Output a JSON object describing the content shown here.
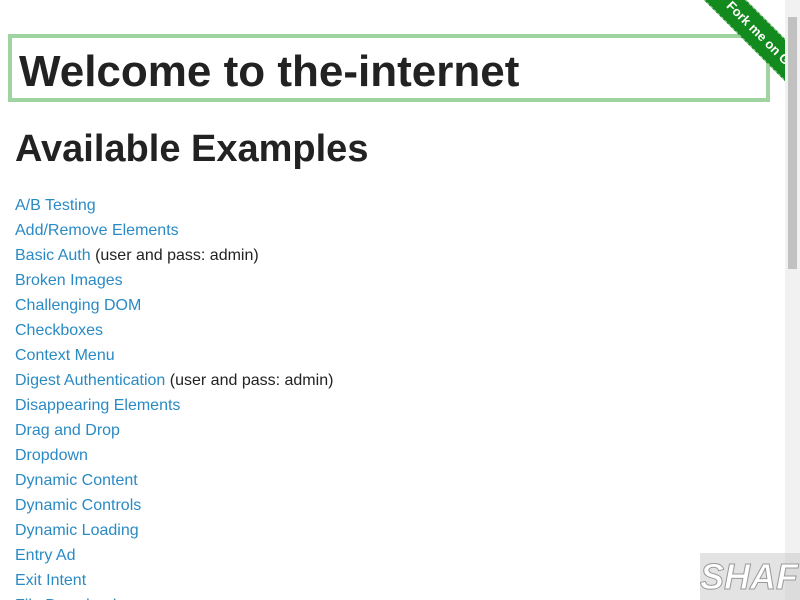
{
  "header": {
    "title": "Welcome to the-internet",
    "subtitle": "Available Examples"
  },
  "ribbon": "Fork me on GitHub",
  "links": [
    {
      "text": "A/B Testing"
    },
    {
      "text": "Add/Remove Elements"
    },
    {
      "text": "Basic Auth",
      "note": "(user and pass: admin)"
    },
    {
      "text": "Broken Images"
    },
    {
      "text": "Challenging DOM"
    },
    {
      "text": "Checkboxes"
    },
    {
      "text": "Context Menu"
    },
    {
      "text": "Digest Authentication",
      "note": "(user and pass: admin)"
    },
    {
      "text": "Disappearing Elements"
    },
    {
      "text": "Drag and Drop"
    },
    {
      "text": "Dropdown"
    },
    {
      "text": "Dynamic Content"
    },
    {
      "text": "Dynamic Controls"
    },
    {
      "text": "Dynamic Loading"
    },
    {
      "text": "Entry Ad"
    },
    {
      "text": "Exit Intent"
    },
    {
      "text": "File Download"
    }
  ],
  "watermark": "SHAFT"
}
